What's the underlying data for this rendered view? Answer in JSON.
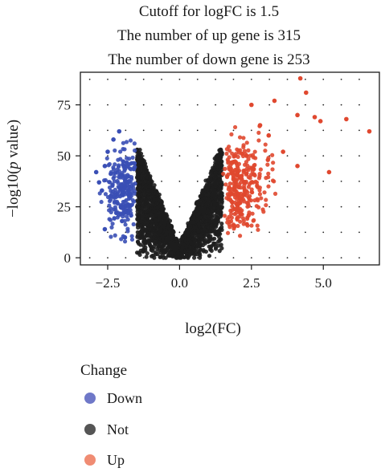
{
  "chart_data": {
    "type": "scatter",
    "title_lines": [
      "Cutoff for logFC is 1.5",
      "The number of up gene is 315",
      "The number of down gene is 253"
    ],
    "xlabel": "log2(FC)",
    "ylabel_prefix": "−log10(",
    "ylabel_italic": "p",
    "ylabel_suffix": " value)",
    "xlim": [
      -3.45,
      6.95
    ],
    "ylim": [
      -3.5,
      91
    ],
    "xticks": [
      -2.5,
      0.0,
      2.5,
      5.0
    ],
    "xtick_labels": [
      "−2.5",
      "0.0",
      "2.5",
      "5.0"
    ],
    "yticks": [
      0,
      25,
      50,
      75
    ],
    "ytick_labels": [
      "0",
      "25",
      "50",
      "75"
    ],
    "grid": "dotted",
    "cutoff_logfc": 1.5,
    "up_count": 315,
    "down_count": 253,
    "legend": {
      "title": "Change",
      "placement": "bottom",
      "entries": [
        {
          "label": "Down",
          "color": "#6f78c8"
        },
        {
          "label": "Not",
          "color": "#555555"
        },
        {
          "label": "Up",
          "color": "#f08c73"
        }
      ]
    },
    "series": [
      {
        "name": "Down",
        "color": "#3a4fb5",
        "highlight_points": [
          [
            -2.8,
            37
          ],
          [
            -2.6,
            45
          ],
          [
            -2.5,
            52
          ],
          [
            -2.3,
            58
          ],
          [
            -2.1,
            62
          ],
          [
            -2.4,
            30
          ],
          [
            -2.2,
            22
          ],
          [
            -2.0,
            18
          ],
          [
            -2.6,
            14
          ],
          [
            -1.9,
            10
          ],
          [
            -2.9,
            42
          ],
          [
            -2.7,
            33
          ]
        ]
      },
      {
        "name": "Not",
        "color": "#1e1e1e"
      },
      {
        "name": "Up",
        "color": "#e0482f",
        "highlight_points": [
          [
            4.2,
            88
          ],
          [
            4.4,
            81
          ],
          [
            3.3,
            77
          ],
          [
            2.5,
            75
          ],
          [
            4.1,
            70
          ],
          [
            4.7,
            69
          ],
          [
            4.9,
            67
          ],
          [
            5.8,
            68
          ],
          [
            6.6,
            62
          ],
          [
            5.2,
            42
          ],
          [
            4.1,
            45
          ],
          [
            3.6,
            52
          ],
          [
            3.1,
            60
          ],
          [
            2.8,
            65
          ]
        ]
      }
    ]
  }
}
